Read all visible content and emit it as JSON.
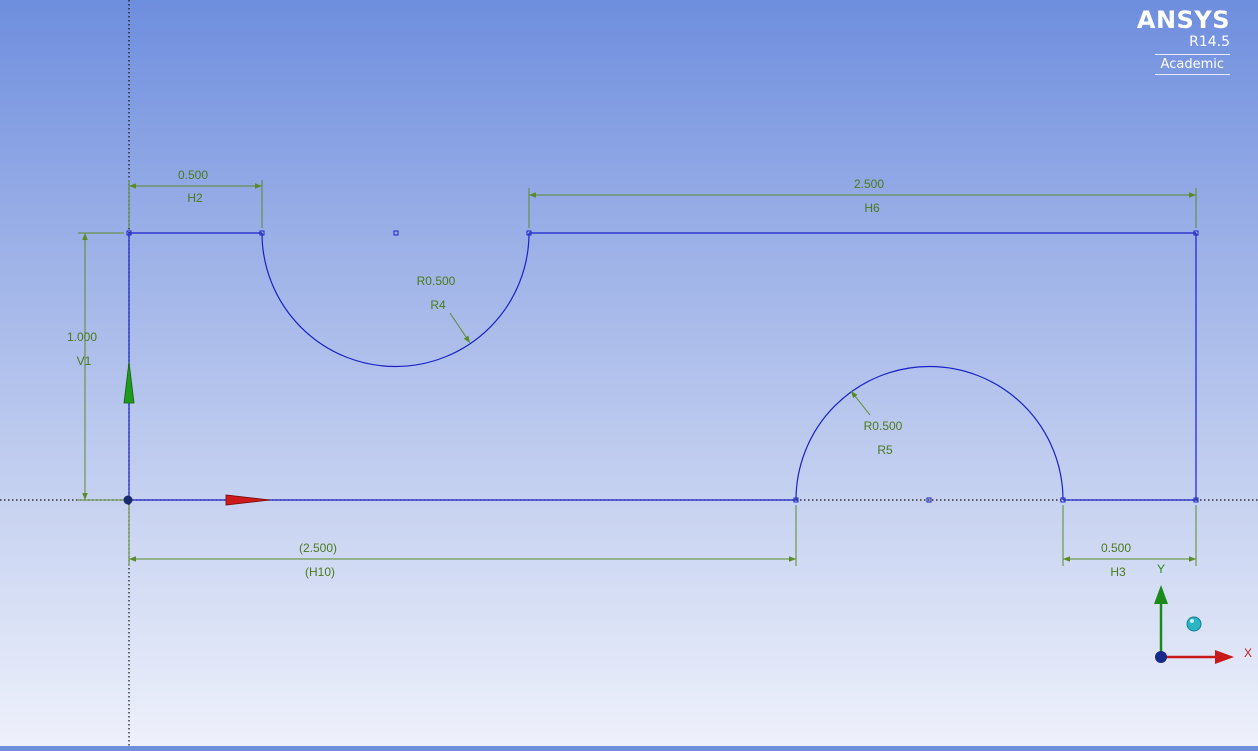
{
  "logo": {
    "brand": "ANSYS",
    "version": "R14.5",
    "edition": "Academic"
  },
  "dimensions": {
    "h2": {
      "value": "0.500",
      "name": "H2"
    },
    "h6": {
      "value": "2.500",
      "name": "H6"
    },
    "v1": {
      "value": "1.000",
      "name": "V1"
    },
    "r4": {
      "value": "R0.500",
      "name": "R4"
    },
    "r5": {
      "value": "R0.500",
      "name": "R5"
    },
    "h10": {
      "value": "(2.500)",
      "name": "(H10)"
    },
    "h3": {
      "value": "0.500",
      "name": "H3"
    }
  },
  "triad": {
    "x_label": "X",
    "y_label": "Y"
  },
  "colors": {
    "geometry": "#1a22c8",
    "dimension": "#5a8a2a",
    "x_axis": "#cc1a1a",
    "y_axis": "#1a9a1a"
  }
}
